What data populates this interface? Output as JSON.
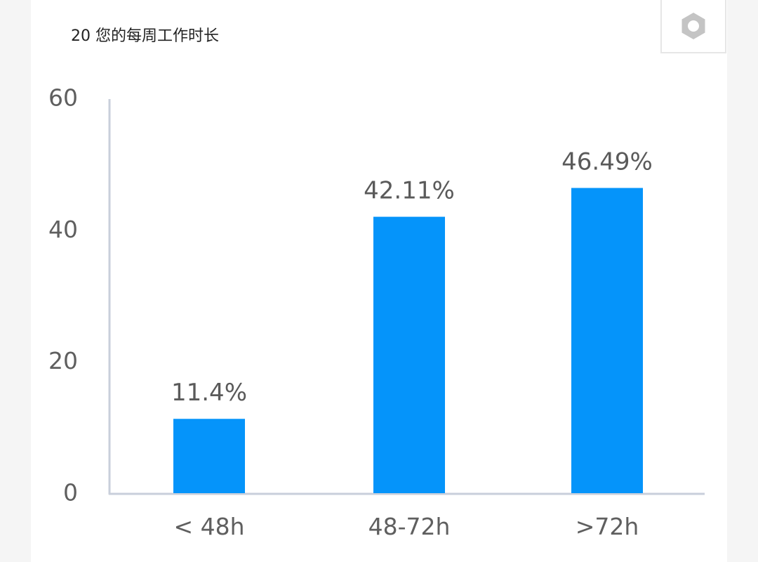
{
  "header": {
    "title": "20 您的每周工作时长"
  },
  "toolbar": {
    "settings_icon": "gear-icon"
  },
  "colors": {
    "bar": "#0594fa",
    "axis": "#c9cfdb",
    "background": "#ffffff",
    "page": "#f5f5f5"
  },
  "chart_data": {
    "type": "bar",
    "title": "20 您的每周工作时长",
    "xlabel": "",
    "ylabel": "",
    "categories": [
      "< 48h",
      "48-72h",
      ">72h"
    ],
    "values": [
      11.4,
      42.11,
      46.49
    ],
    "data_labels": [
      "11.4%",
      "42.11%",
      "46.49%"
    ],
    "ylim": [
      0,
      60
    ],
    "yticks": [
      0,
      20,
      40,
      60
    ],
    "grid": false,
    "legend": "none"
  }
}
